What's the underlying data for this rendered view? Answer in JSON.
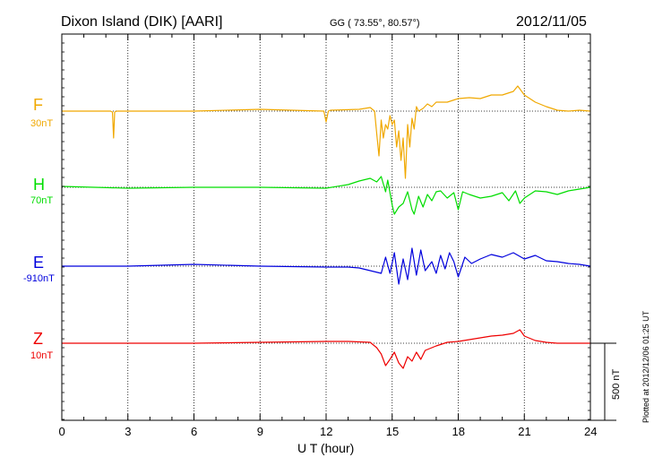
{
  "header": {
    "station": "Dixon Island (DIK)  [AARI]",
    "coords": "GG ( 73.55°,  80.57°)",
    "date": "2012/11/05"
  },
  "side_note": "Plotted at 2012/12/06 01:25 UT",
  "scale_bar_label": "500 nT",
  "chart_data": {
    "type": "line",
    "title": "Dixon Island (DIK)  [AARI]",
    "xlabel": "U T (hour)",
    "ylabel": "",
    "xlim": [
      0,
      24
    ],
    "x_ticks": [
      "0",
      "3",
      "6",
      "9",
      "12",
      "15",
      "18",
      "21",
      "24"
    ],
    "grid": true,
    "series": [
      {
        "name": "F",
        "baseline": "30nT",
        "color": "#f0a800",
        "x": [
          0,
          2.2,
          2.3,
          2.35,
          2.4,
          2.5,
          6,
          9,
          11.9,
          12.0,
          12.1,
          12.2,
          13.5,
          14.0,
          14.2,
          14.3,
          14.4,
          14.5,
          14.6,
          14.7,
          14.8,
          14.9,
          15.0,
          15.1,
          15.2,
          15.3,
          15.4,
          15.5,
          15.6,
          15.7,
          15.8,
          15.9,
          16.0,
          16.1,
          16.2,
          16.4,
          16.6,
          16.8,
          17.0,
          17.5,
          18.0,
          18.5,
          19.0,
          19.5,
          20.0,
          20.5,
          20.7,
          21.0,
          21.5,
          22.0,
          22.5,
          23.0,
          23.5,
          24.0
        ],
        "y": [
          0,
          0,
          -1,
          -30,
          -1,
          0,
          0,
          2,
          0,
          -12,
          0,
          1,
          2,
          4,
          0,
          -25,
          -50,
          -10,
          -30,
          -15,
          -20,
          -5,
          -15,
          -10,
          -40,
          -22,
          -55,
          -30,
          -75,
          -15,
          -40,
          -8,
          -20,
          5,
          0,
          3,
          8,
          5,
          10,
          10,
          14,
          15,
          14,
          18,
          18,
          22,
          28,
          18,
          10,
          5,
          1,
          0,
          1,
          0
        ]
      },
      {
        "name": "H",
        "baseline": "70nT",
        "color": "#00dd00",
        "x": [
          0,
          3,
          6,
          9,
          12,
          13,
          13.5,
          14.0,
          14.3,
          14.5,
          14.7,
          14.8,
          15.0,
          15.1,
          15.3,
          15.5,
          15.7,
          15.9,
          16.0,
          16.2,
          16.4,
          16.6,
          16.8,
          17.0,
          17.2,
          17.5,
          17.8,
          18.0,
          18.2,
          18.5,
          19.0,
          19.5,
          20.0,
          20.3,
          20.6,
          20.8,
          21.0,
          21.5,
          22.0,
          22.5,
          23.0,
          23.5,
          24.0
        ],
        "y": [
          1,
          -1,
          0,
          0,
          -1,
          3,
          7,
          10,
          6,
          12,
          -5,
          8,
          -20,
          -30,
          -22,
          -18,
          -5,
          -25,
          -30,
          -10,
          -22,
          -8,
          -15,
          -5,
          -4,
          -12,
          -6,
          -25,
          -5,
          -8,
          -12,
          -10,
          -6,
          -15,
          -4,
          -18,
          -12,
          -4,
          -5,
          -8,
          -4,
          -2,
          0
        ]
      },
      {
        "name": "E",
        "baseline": "-910nT",
        "color": "#0000dd",
        "x": [
          0,
          3,
          6,
          9,
          12,
          13,
          13.5,
          14.0,
          14.5,
          14.7,
          14.9,
          15.1,
          15.3,
          15.5,
          15.7,
          15.9,
          16.1,
          16.3,
          16.5,
          16.8,
          17.0,
          17.2,
          17.4,
          17.6,
          17.8,
          18.0,
          18.3,
          18.6,
          19.0,
          19.5,
          20.0,
          20.5,
          21.0,
          21.5,
          22.0,
          22.5,
          23.0,
          23.5,
          24.0
        ],
        "y": [
          0,
          0,
          2,
          0,
          -1,
          -1,
          -2,
          -5,
          -8,
          10,
          -8,
          15,
          -20,
          8,
          -15,
          20,
          -10,
          18,
          -5,
          5,
          -8,
          12,
          -3,
          15,
          5,
          -12,
          10,
          3,
          8,
          13,
          10,
          15,
          8,
          12,
          6,
          5,
          3,
          2,
          0
        ]
      },
      {
        "name": "Z",
        "baseline": "10nT",
        "color": "#ee0000",
        "x": [
          0,
          3,
          6,
          9,
          12,
          13,
          14,
          14.3,
          14.5,
          14.7,
          14.9,
          15.1,
          15.3,
          15.5,
          15.7,
          15.9,
          16.1,
          16.3,
          16.5,
          16.8,
          17.0,
          17.5,
          18.0,
          18.5,
          19.0,
          19.5,
          20.0,
          20.5,
          20.8,
          21.0,
          21.5,
          22.0,
          22.5,
          23.0,
          23.5,
          24.0
        ],
        "y": [
          0,
          0,
          0,
          1,
          2,
          2,
          1,
          -5,
          -12,
          -25,
          -18,
          -10,
          -22,
          -28,
          -15,
          -20,
          -10,
          -18,
          -8,
          -5,
          -3,
          1,
          2,
          4,
          6,
          8,
          9,
          11,
          15,
          8,
          3,
          1,
          0,
          0,
          0,
          0
        ]
      }
    ]
  }
}
